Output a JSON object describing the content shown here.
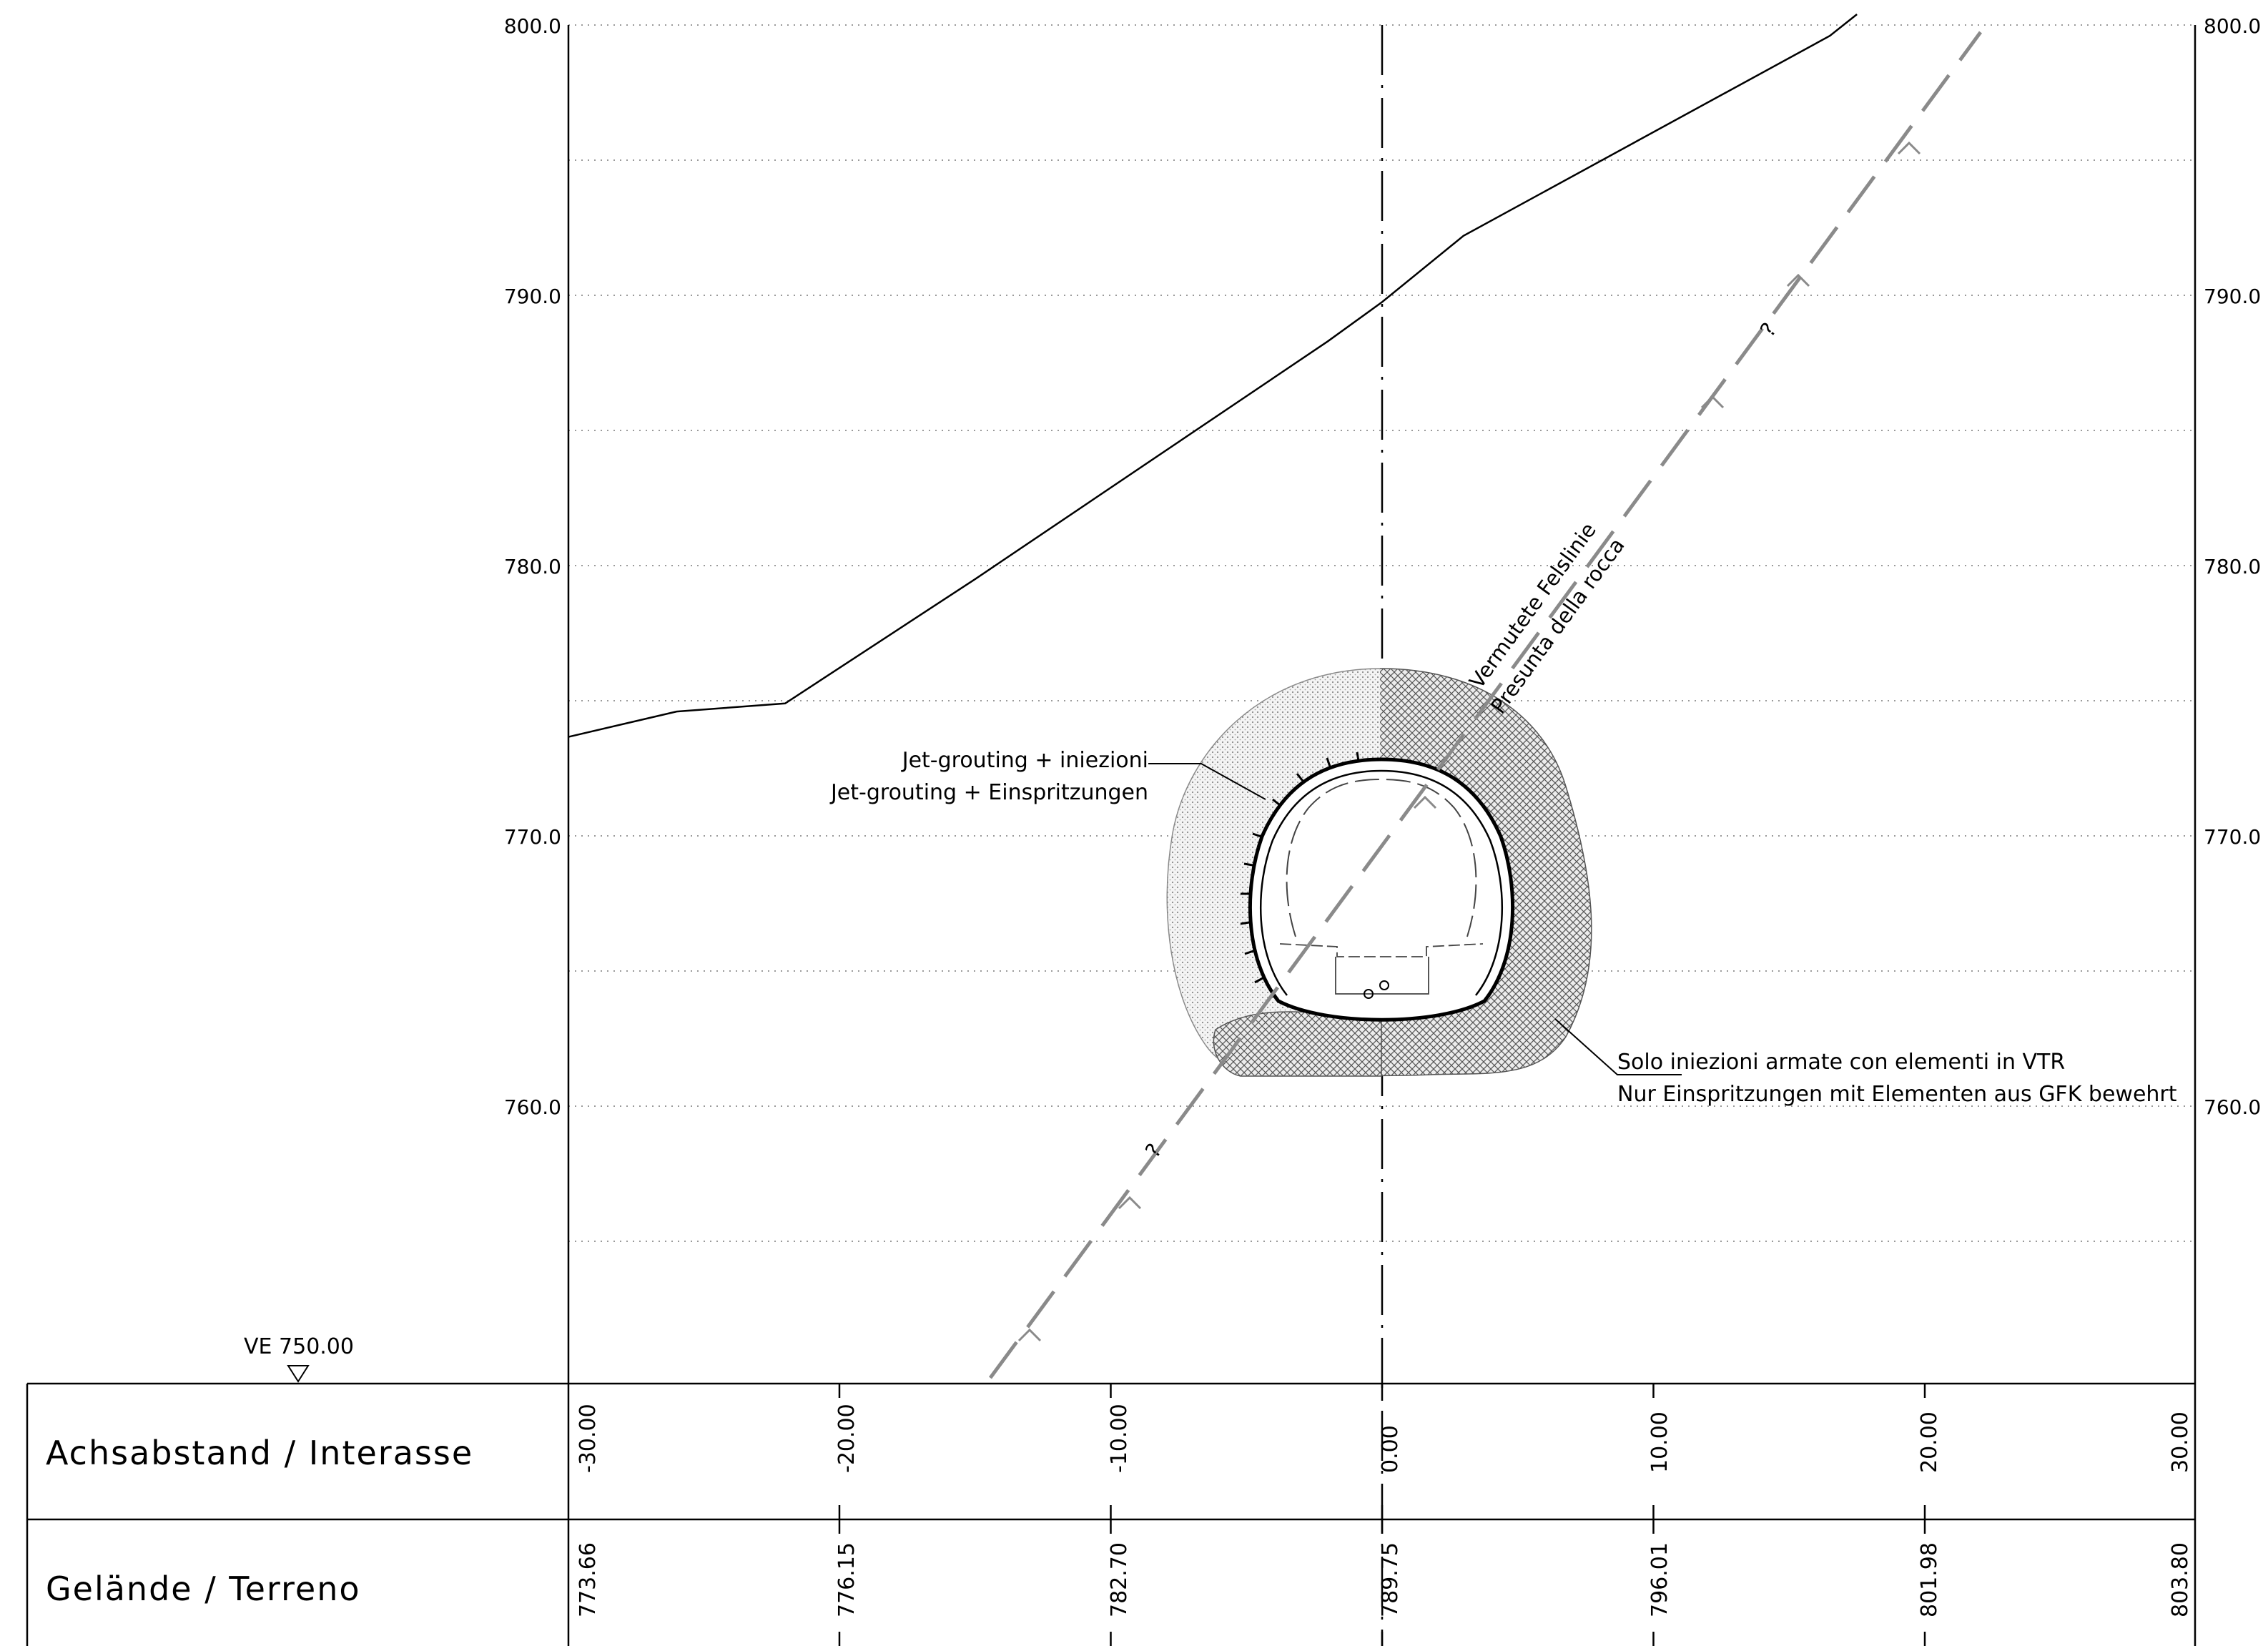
{
  "drawing": {
    "reference_level": "VE 750.00",
    "elevation_labels": [
      "800.0",
      "790.0",
      "780.0",
      "770.0",
      "760.0"
    ],
    "notes": {
      "jet_grouting_it": "Jet-grouting  + iniezioni",
      "jet_grouting_de": "Jet-grouting  + Einspritzungen",
      "injections_it": "Solo iniezioni armate con elementi in VTR",
      "injections_de": "Nur Einspritzungen mit Elementen aus GFK bewehrt",
      "rock_line_de": "Vermutete Felslinie",
      "rock_line_it": "Presunta della rocca",
      "uncertainty_mark": "?"
    },
    "terrain_profile": [
      {
        "x": -30,
        "y": 773.66
      },
      {
        "x": -26,
        "y": 774.6
      },
      {
        "x": -22,
        "y": 774.9
      },
      {
        "x": -15,
        "y": 779.5
      },
      {
        "x": -2,
        "y": 788.3
      },
      {
        "x": 0,
        "y": 789.75
      },
      {
        "x": 3,
        "y": 792.2
      },
      {
        "x": 16.5,
        "y": 799.6
      },
      {
        "x": 17.5,
        "y": 800.5
      }
    ]
  },
  "bands": {
    "offset": {
      "title": "Achsabstand / Interasse",
      "values": [
        "-30.00",
        "-20.00",
        "-10.00",
        "0.00",
        "10.00",
        "20.00",
        "30.00"
      ]
    },
    "terrain": {
      "title": "Gelände / Terreno",
      "values": [
        "773.66",
        "776.15",
        "782.70",
        "789.75",
        "796.01",
        "801.98",
        "803.80"
      ]
    }
  }
}
